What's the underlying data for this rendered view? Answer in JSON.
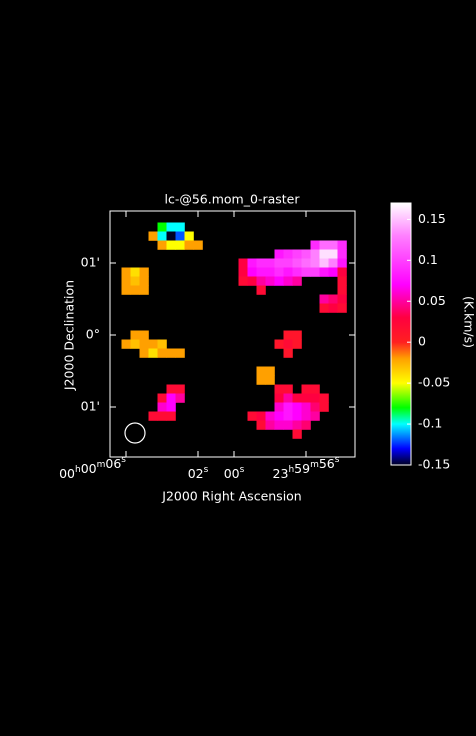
{
  "chart_data": {
    "type": "raster",
    "title": "lc-@56.mom_0-raster",
    "xlabel": "J2000 Right Ascension",
    "ylabel": "J2000 Declination",
    "xlim": [
      6.75,
      -6.75
    ],
    "ylim": [
      -1.6875,
      1.6875
    ],
    "xticks": [
      {
        "value": 6,
        "label": "00h00m06s"
      },
      {
        "value": 2,
        "label": "02s"
      },
      {
        "value": 0,
        "label": "00s"
      },
      {
        "value": -4,
        "label": "23h59m56s"
      }
    ],
    "yticks": [
      {
        "value": 1,
        "label": "01'"
      },
      {
        "value": 0,
        "label": "0°"
      },
      {
        "value": -1,
        "label": "01'"
      }
    ],
    "rows": [
      {
        "y": 1.5,
        "x": [
          4,
          3.5,
          3
        ],
        "values": [
          -0.08,
          -0.1,
          -0.1
        ]
      },
      {
        "y": 1.375,
        "x": [
          4.5,
          4,
          3.5,
          3,
          2.5
        ],
        "values": [
          -0.02,
          -0.1,
          -0.15,
          -0.12,
          -0.05
        ]
      },
      {
        "y": 1.25,
        "x": [
          4,
          3.5,
          3,
          2.5,
          2,
          -4.5,
          -5,
          -5.5,
          -6
        ],
        "values": [
          -0.02,
          -0.05,
          -0.05,
          -0.02,
          -0.02,
          0.09,
          0.12,
          0.12,
          0.09
        ]
      },
      {
        "y": 1.125,
        "x": [
          -2.5,
          -3,
          -3.5,
          -4,
          -4.5,
          -5,
          -5.5,
          -6
        ],
        "values": [
          0.08,
          0.09,
          0.1,
          0.11,
          0.13,
          0.16,
          0.16,
          0.09
        ]
      },
      {
        "y": 1,
        "x": [
          -0.5,
          -1,
          -1.5,
          -2,
          -2.5,
          -3,
          -3.5,
          -4,
          -4.5,
          -5,
          -5.5,
          -6
        ],
        "values": [
          0.03,
          0.08,
          0.09,
          0.09,
          0.1,
          0.1,
          0.11,
          0.12,
          0.13,
          0.15,
          0.13,
          0.08
        ]
      },
      {
        "y": 0.875,
        "x": [
          6,
          5.5,
          5,
          -0.5,
          -1,
          -1.5,
          -2,
          -2.5,
          -3,
          -3.5,
          -4,
          -4.5,
          -5,
          -5.5,
          -6
        ],
        "values": [
          -0.02,
          -0.04,
          -0.02,
          0.03,
          0.07,
          0.08,
          0.08,
          0.09,
          0.08,
          0.09,
          0.1,
          0.1,
          0.08,
          0.07,
          0.03
        ]
      },
      {
        "y": 0.75,
        "x": [
          6,
          5.5,
          5,
          -0.5,
          -1,
          -1.5,
          -2,
          -2.5,
          -3,
          -3.5,
          -6
        ],
        "values": [
          -0.02,
          -0.03,
          -0.02,
          0.02,
          0.03,
          0.05,
          0.06,
          0.07,
          0.06,
          0.05,
          0.02
        ]
      },
      {
        "y": 0.625,
        "x": [
          6,
          5.5,
          5,
          -1.5,
          -6
        ],
        "values": [
          -0.02,
          -0.02,
          -0.02,
          0.02,
          0.02
        ]
      },
      {
        "y": 0.5,
        "x": [
          -5,
          -5.5,
          -6
        ],
        "values": [
          0.05,
          0.04,
          0.03
        ]
      },
      {
        "y": 0.375,
        "x": [
          -5,
          -5.5,
          -6
        ],
        "values": [
          0.02,
          0.03,
          0.02
        ]
      },
      {
        "y": 0,
        "x": [
          5.5,
          5,
          -3,
          -3.5
        ],
        "values": [
          -0.02,
          -0.02,
          0.01,
          0.01
        ]
      },
      {
        "y": -0.125,
        "x": [
          6,
          5.5,
          5,
          4.5,
          4,
          -2.5,
          -3,
          -3.5
        ],
        "values": [
          -0.02,
          -0.03,
          -0.02,
          -0.02,
          -0.03,
          0.01,
          0.02,
          0.01
        ]
      },
      {
        "y": -0.25,
        "x": [
          5,
          4.5,
          4,
          3.5,
          3,
          -3
        ],
        "values": [
          -0.02,
          -0.04,
          -0.02,
          -0.02,
          -0.02,
          0.01
        ]
      },
      {
        "y": -0.5,
        "x": [
          -1.5,
          -2
        ],
        "values": [
          -0.02,
          -0.02
        ]
      },
      {
        "y": -0.625,
        "x": [
          -1.5,
          -2
        ],
        "values": [
          -0.02,
          -0.02
        ]
      },
      {
        "y": -0.75,
        "x": [
          3.5,
          3,
          -2.5,
          -3,
          -4,
          -4.5
        ],
        "values": [
          0.02,
          0.02,
          0.02,
          0.02,
          0.02,
          0.02
        ]
      },
      {
        "y": -0.875,
        "x": [
          4,
          3.5,
          3,
          -2.5,
          -3,
          -3.5,
          -4,
          -4.5,
          -5
        ],
        "values": [
          0.02,
          0.07,
          0.05,
          0.03,
          0.05,
          0.03,
          0.03,
          0.03,
          0.02
        ]
      },
      {
        "y": -1,
        "x": [
          4,
          3.5,
          -2.5,
          -3,
          -3.5,
          -4,
          -4.5,
          -5
        ],
        "values": [
          0.06,
          0.07,
          0.06,
          0.08,
          0.07,
          0.06,
          0.04,
          0.02
        ]
      },
      {
        "y": -1.125,
        "x": [
          4.5,
          4,
          3.5,
          -1,
          -1.5,
          -2,
          -2.5,
          -3,
          -3.5,
          -4,
          -4.5
        ],
        "values": [
          0.02,
          0.02,
          0.02,
          0.02,
          0.03,
          0.06,
          0.07,
          0.08,
          0.07,
          0.06,
          0.05
        ]
      },
      {
        "y": -1.25,
        "x": [
          -1.5,
          -2,
          -2.5,
          -3,
          -3.5,
          -4
        ],
        "values": [
          0.02,
          0.05,
          0.06,
          0.06,
          0.05,
          0.04
        ]
      },
      {
        "y": -1.375,
        "x": [
          -3.5
        ],
        "values": [
          0.02
        ]
      }
    ],
    "clim": [
      -0.15,
      0.17
    ],
    "cticks": [
      -0.15,
      -0.1,
      -0.05,
      0,
      0.05,
      0.1,
      0.15
    ],
    "clabel": "(K.km/s)",
    "colormap": [
      {
        "value": -0.15,
        "color": "#000020"
      },
      {
        "value": -0.13,
        "color": "#0000ff"
      },
      {
        "value": -0.1,
        "color": "#00ffff"
      },
      {
        "value": -0.08,
        "color": "#00ff00"
      },
      {
        "value": -0.05,
        "color": "#ffff00"
      },
      {
        "value": -0.02,
        "color": "#ffa000"
      },
      {
        "value": 0,
        "color": "#ff2020"
      },
      {
        "value": 0.03,
        "color": "#ff0040"
      },
      {
        "value": 0.07,
        "color": "#ff00ff"
      },
      {
        "value": 0.13,
        "color": "#ff80ff"
      },
      {
        "value": 0.17,
        "color": "#ffffff"
      }
    ]
  }
}
